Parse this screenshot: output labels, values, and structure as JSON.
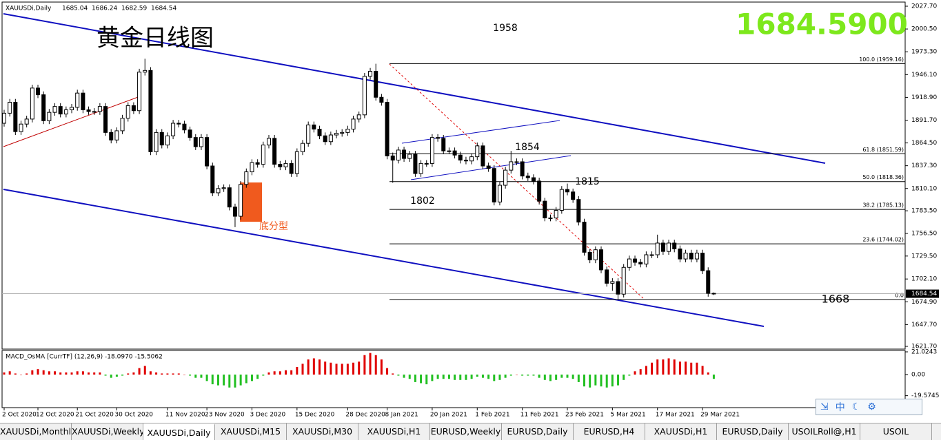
{
  "header": {
    "symbol": "XAUUSDi,Daily",
    "ohlc": [
      1685.04,
      1686.24,
      1682.59,
      1684.54
    ]
  },
  "chart_data": {
    "type": "candlestick",
    "title": "黄金日线图",
    "price_display": "1684.5900",
    "ylim": [
      1621.7,
      2027.7
    ],
    "yticks": [
      {
        "value": 2027.7,
        "label": "2027.70"
      },
      {
        "value": 2000.5,
        "label": "2000.50"
      },
      {
        "value": 1973.3,
        "label": "1973.30"
      },
      {
        "value": 1946.1,
        "label": "1946.10"
      },
      {
        "value": 1918.9,
        "label": "1918.90"
      },
      {
        "value": 1891.7,
        "label": "1891.70"
      },
      {
        "value": 1864.5,
        "label": "1864.50"
      },
      {
        "value": 1837.3,
        "label": "1837.30"
      },
      {
        "value": 1810.1,
        "label": "1810.10"
      },
      {
        "value": 1783.5,
        "label": "1783.50"
      },
      {
        "value": 1756.5,
        "label": "1756.50"
      },
      {
        "value": 1729.5,
        "label": "1729.50"
      },
      {
        "value": 1702.1,
        "label": "1702.10"
      },
      {
        "value": 1674.9,
        "label": "1674.90"
      },
      {
        "value": 1647.7,
        "label": "1647.70"
      },
      {
        "value": 1621.7,
        "label": "1621.70"
      }
    ],
    "last_price": 1684.54,
    "fib_levels": [
      {
        "text": "100.0 (1959.16)",
        "price": 1959.16
      },
      {
        "text": "61.8 (1851.59)",
        "price": 1851.59
      },
      {
        "text": "50.0 (1818.36)",
        "price": 1818.36
      },
      {
        "text": "38.2 (1785.13)",
        "price": 1785.13
      },
      {
        "text": "23.6 (1744.02)",
        "price": 1744.02
      },
      {
        "text": "0.0",
        "price": 1677.6
      }
    ],
    "annotations": [
      "1958",
      "1854",
      "1815",
      "1802",
      "1668",
      "底分型"
    ],
    "dates": [
      "2 Oct 2020",
      "12 Oct 2020",
      "21 Oct 2020",
      "30 Oct 2020",
      "11 Nov 2020",
      "23 Nov 2020",
      "3 Dec 2020",
      "15 Dec 2020",
      "28 Dec 2020",
      "8 Jan 2021",
      "20 Jan 2021",
      "1 Feb 2021",
      "11 Feb 2021",
      "23 Feb 2021",
      "5 Mar 2021",
      "17 Mar 2021",
      "29 Mar 2021"
    ],
    "candles": [
      [
        1888,
        1904,
        1884,
        1900
      ],
      [
        1900,
        1917,
        1896,
        1913
      ],
      [
        1913,
        1917,
        1874,
        1878
      ],
      [
        1878,
        1891,
        1874,
        1887
      ],
      [
        1887,
        1897,
        1883,
        1893
      ],
      [
        1893,
        1934,
        1889,
        1930
      ],
      [
        1930,
        1934,
        1918,
        1922
      ],
      [
        1922,
        1926,
        1887,
        1891
      ],
      [
        1891,
        1905,
        1887,
        1901
      ],
      [
        1901,
        1912,
        1897,
        1908
      ],
      [
        1908,
        1912,
        1895,
        1899
      ],
      [
        1899,
        1908,
        1895,
        1904
      ],
      [
        1904,
        1911,
        1900,
        1907
      ],
      [
        1907,
        1928,
        1903,
        1924
      ],
      [
        1924,
        1928,
        1900,
        1904
      ],
      [
        1904,
        1908,
        1898,
        1902
      ],
      [
        1902,
        1906,
        1898,
        1902
      ],
      [
        1902,
        1912,
        1898,
        1908
      ],
      [
        1908,
        1912,
        1873,
        1877
      ],
      [
        1877,
        1881,
        1864,
        1868
      ],
      [
        1868,
        1883,
        1864,
        1879
      ],
      [
        1879,
        1898,
        1875,
        1894
      ],
      [
        1894,
        1913,
        1890,
        1909
      ],
      [
        1909,
        1913,
        1899,
        1903
      ],
      [
        1903,
        1953,
        1899,
        1949
      ],
      [
        1949,
        1965,
        1945,
        1951
      ],
      [
        1951,
        1955,
        1850,
        1854
      ],
      [
        1854,
        1881,
        1850,
        1877
      ],
      [
        1877,
        1881,
        1858,
        1862
      ],
      [
        1862,
        1877,
        1858,
        1873
      ],
      [
        1873,
        1892,
        1869,
        1888
      ],
      [
        1888,
        1892,
        1883,
        1887
      ],
      [
        1887,
        1891,
        1876,
        1880
      ],
      [
        1880,
        1884,
        1867,
        1871
      ],
      [
        1871,
        1875,
        1856,
        1860
      ],
      [
        1860,
        1875,
        1856,
        1871
      ],
      [
        1871,
        1875,
        1833,
        1837
      ],
      [
        1837,
        1841,
        1801,
        1805
      ],
      [
        1805,
        1814,
        1801,
        1810
      ],
      [
        1810,
        1815,
        1806,
        1811
      ],
      [
        1811,
        1815,
        1784,
        1788
      ],
      [
        1788,
        1792,
        1764,
        1777
      ],
      [
        1777,
        1819,
        1773,
        1815
      ],
      [
        1815,
        1834,
        1811,
        1830
      ],
      [
        1830,
        1845,
        1826,
        1841
      ],
      [
        1841,
        1845,
        1835,
        1839
      ],
      [
        1839,
        1866,
        1835,
        1862
      ],
      [
        1862,
        1874,
        1858,
        1870
      ],
      [
        1870,
        1874,
        1835,
        1839
      ],
      [
        1839,
        1843,
        1832,
        1836
      ],
      [
        1836,
        1844,
        1832,
        1840
      ],
      [
        1840,
        1844,
        1824,
        1828
      ],
      [
        1828,
        1858,
        1824,
        1854
      ],
      [
        1854,
        1868,
        1850,
        1864
      ],
      [
        1864,
        1890,
        1860,
        1886
      ],
      [
        1886,
        1890,
        1877,
        1881
      ],
      [
        1881,
        1885,
        1869,
        1873
      ],
      [
        1873,
        1877,
        1862,
        1866
      ],
      [
        1866,
        1878,
        1862,
        1874
      ],
      [
        1874,
        1880,
        1870,
        1876
      ],
      [
        1876,
        1881,
        1872,
        1877
      ],
      [
        1877,
        1885,
        1873,
        1881
      ],
      [
        1881,
        1897,
        1877,
        1893
      ],
      [
        1893,
        1902,
        1889,
        1898
      ],
      [
        1898,
        1948,
        1894,
        1944
      ],
      [
        1944,
        1954,
        1940,
        1950
      ],
      [
        1950,
        1959,
        1915,
        1919
      ],
      [
        1919,
        1923,
        1909,
        1913
      ],
      [
        1913,
        1917,
        1845,
        1849
      ],
      [
        1849,
        1853,
        1817,
        1844
      ],
      [
        1844,
        1860,
        1840,
        1856
      ],
      [
        1856,
        1860,
        1842,
        1846
      ],
      [
        1846,
        1855,
        1842,
        1851
      ],
      [
        1851,
        1855,
        1824,
        1828
      ],
      [
        1828,
        1844,
        1824,
        1840
      ],
      [
        1840,
        1844,
        1836,
        1840
      ],
      [
        1840,
        1875,
        1836,
        1871
      ],
      [
        1871,
        1875,
        1866,
        1870
      ],
      [
        1870,
        1874,
        1851,
        1855
      ],
      [
        1855,
        1859,
        1851,
        1855
      ],
      [
        1855,
        1859,
        1846,
        1850
      ],
      [
        1850,
        1854,
        1840,
        1844
      ],
      [
        1844,
        1848,
        1839,
        1843
      ],
      [
        1843,
        1852,
        1839,
        1848
      ],
      [
        1848,
        1865,
        1844,
        1861
      ],
      [
        1861,
        1865,
        1833,
        1837
      ],
      [
        1837,
        1841,
        1830,
        1834
      ],
      [
        1834,
        1838,
        1790,
        1794
      ],
      [
        1794,
        1818,
        1790,
        1814
      ],
      [
        1814,
        1836,
        1810,
        1832
      ],
      [
        1832,
        1855,
        1828,
        1842
      ],
      [
        1842,
        1846,
        1838,
        1842
      ],
      [
        1842,
        1846,
        1821,
        1825
      ],
      [
        1825,
        1829,
        1819,
        1823
      ],
      [
        1823,
        1827,
        1815,
        1819
      ],
      [
        1819,
        1823,
        1791,
        1795
      ],
      [
        1795,
        1799,
        1771,
        1775
      ],
      [
        1775,
        1779,
        1771,
        1775
      ],
      [
        1775,
        1788,
        1771,
        1784
      ],
      [
        1784,
        1813,
        1780,
        1809
      ],
      [
        1809,
        1816,
        1802,
        1806
      ],
      [
        1806,
        1810,
        1793,
        1797
      ],
      [
        1797,
        1801,
        1766,
        1770
      ],
      [
        1770,
        1774,
        1730,
        1734
      ],
      [
        1734,
        1738,
        1721,
        1725
      ],
      [
        1725,
        1741,
        1721,
        1737
      ],
      [
        1737,
        1741,
        1709,
        1713
      ],
      [
        1713,
        1717,
        1693,
        1697
      ],
      [
        1697,
        1703,
        1688,
        1699
      ],
      [
        1699,
        1703,
        1677,
        1684
      ],
      [
        1684,
        1720,
        1680,
        1716
      ],
      [
        1716,
        1730,
        1712,
        1726
      ],
      [
        1726,
        1730,
        1718,
        1722
      ],
      [
        1722,
        1726,
        1716,
        1720
      ],
      [
        1720,
        1735,
        1716,
        1731
      ],
      [
        1731,
        1735,
        1727,
        1731
      ],
      [
        1731,
        1755,
        1727,
        1745
      ],
      [
        1745,
        1749,
        1731,
        1735
      ],
      [
        1735,
        1749,
        1731,
        1745
      ],
      [
        1745,
        1749,
        1734,
        1738
      ],
      [
        1738,
        1742,
        1722,
        1726
      ],
      [
        1726,
        1737,
        1722,
        1733
      ],
      [
        1733,
        1737,
        1722,
        1726
      ],
      [
        1726,
        1737,
        1722,
        1733
      ],
      [
        1733,
        1737,
        1708,
        1712
      ],
      [
        1712,
        1716,
        1681,
        1685
      ],
      [
        1685,
        1686,
        1683,
        1685
      ]
    ],
    "macd": {
      "label": "MACD_OsMA [CurrTF] (12,26,9) -18.0970 -15.5062",
      "ylim": [
        -30,
        21.0243
      ],
      "yticks": [
        21.0243,
        {
          "value": 0,
          "label": "0.00"
        },
        -19.5745
      ],
      "up_color": "#e00000",
      "down_color": "#22c022",
      "histogram": [
        2,
        3,
        1,
        0,
        1,
        4,
        5,
        4,
        3,
        3,
        2,
        2,
        2,
        3,
        3,
        2,
        2,
        2,
        -1,
        -3,
        -2,
        -1,
        1,
        2,
        6,
        8,
        3,
        2,
        1,
        1,
        1,
        1,
        0,
        -1,
        -3,
        -3,
        -6,
        -9,
        -10,
        -10,
        -12,
        -12,
        -10,
        -8,
        -6,
        -4,
        -1,
        2,
        3,
        3,
        4,
        4,
        7,
        10,
        14,
        15,
        14,
        12,
        11,
        10,
        10,
        10,
        11,
        12,
        18,
        20,
        18,
        14,
        6,
        1,
        -1,
        -3,
        -4,
        -7,
        -8,
        -9,
        -6,
        -4,
        -4,
        -4,
        -5,
        -5,
        -5,
        -4,
        -2,
        -3,
        -4,
        -6,
        -5,
        -3,
        -1,
        0,
        -1,
        -1,
        -1,
        -3,
        -5,
        -6,
        -5,
        -3,
        -3,
        -4,
        -7,
        -11,
        -12,
        -10,
        -11,
        -12,
        -11,
        -10,
        -5,
        -1,
        3,
        5,
        8,
        11,
        14,
        14,
        15,
        14,
        12,
        12,
        11,
        11,
        8,
        2,
        -4
      ]
    }
  },
  "tabs": [
    "XAUUSDi,Monthly",
    "XAUUSDi,Weekly",
    "XAUUSDi,Daily",
    "XAUUSDi,M15",
    "XAUUSDi,M30",
    "XAUUSDi,H1",
    "EURUSD,Weekly",
    "EURUSD,Daily",
    "EURUSD,H4",
    "XAUUSDi,H1",
    "EURUSD,Daily",
    "USOILRoll@,H1",
    "USOIL"
  ],
  "active_tab": 2,
  "ime": "中"
}
